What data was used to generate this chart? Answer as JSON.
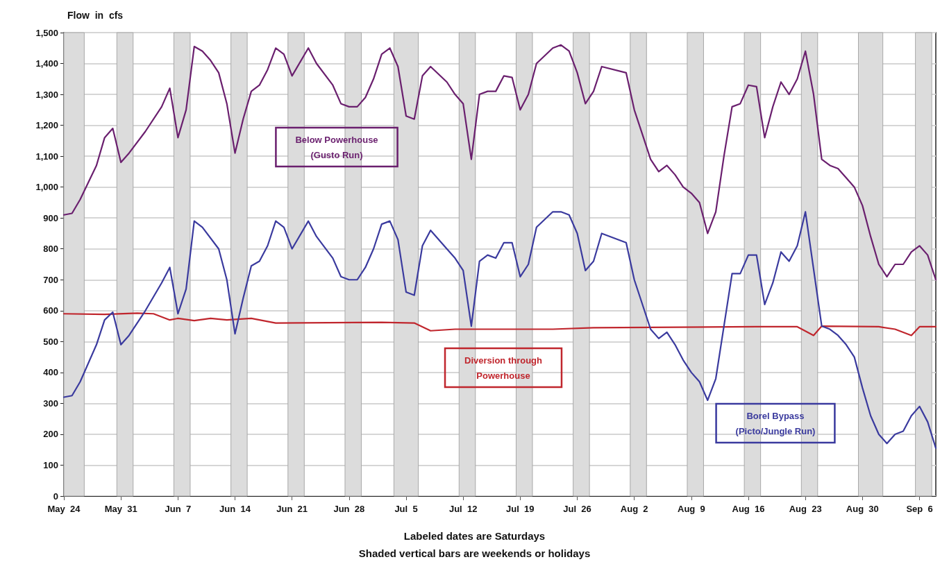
{
  "chart_data": {
    "type": "line",
    "ylabel": "Flow  in  cfs",
    "xlabel": "Labeled dates are Saturdays",
    "xlim": [
      "--05-24",
      "--09-08"
    ],
    "xticks": [
      {
        "value": "--05-24",
        "label": "May  24"
      },
      {
        "value": "--05-31",
        "label": "May  31"
      },
      {
        "value": "--06-07",
        "label": "Jun  7"
      },
      {
        "value": "--06-14",
        "label": "Jun  14"
      },
      {
        "value": "--06-21",
        "label": "Jun  21"
      },
      {
        "value": "--06-28",
        "label": "Jun  28"
      },
      {
        "value": "--07-05",
        "label": "Jul  5"
      },
      {
        "value": "--07-12",
        "label": "Jul  12"
      },
      {
        "value": "--07-19",
        "label": "Jul  19"
      },
      {
        "value": "--07-26",
        "label": "Jul  26"
      },
      {
        "value": "--08-02",
        "label": "Aug  2"
      },
      {
        "value": "--08-09",
        "label": "Aug  9"
      },
      {
        "value": "--08-16",
        "label": "Aug  16"
      },
      {
        "value": "--08-23",
        "label": "Aug  23"
      },
      {
        "value": "--08-30",
        "label": "Aug  30"
      },
      {
        "value": "--09-06",
        "label": "Sep  6"
      }
    ],
    "ylim": [
      0,
      1500
    ],
    "yticks": [
      0,
      100,
      200,
      300,
      400,
      500,
      600,
      700,
      800,
      900,
      {
        "value": 1000,
        "label": "1,000"
      },
      {
        "value": 1100,
        "label": "1,100"
      },
      {
        "value": 1200,
        "label": "1,200"
      },
      {
        "value": 1300,
        "label": "1,300"
      },
      {
        "value": 1400,
        "label": "1,400"
      },
      {
        "value": 1500,
        "label": "1,500"
      }
    ],
    "grid": "y",
    "legend": false,
    "marker": "none",
    "line_style": "solid",
    "series": [
      {
        "name": "Below Powerhouse\n(Gusto Run)",
        "color": "#6a1f6e",
        "x": [
          "--05-24",
          "--05-25",
          "--05-26",
          "--05-28",
          "--05-29",
          "--05-30",
          "--05-31",
          "--06-01",
          "--06-03",
          "--06-05",
          "--06-06",
          "--06-07",
          "--06-08",
          "--06-09",
          "--06-10",
          "--06-11",
          "--06-12",
          "--06-13",
          "--06-14",
          "--06-15",
          "--06-16",
          "--06-17",
          "--06-18",
          "--06-19",
          "--06-20",
          "--06-21",
          "--06-23",
          "--06-24",
          "--06-26",
          "--06-27",
          "--06-28",
          "--06-29",
          "--06-30",
          "--07-01",
          "--07-02",
          "--07-03",
          "--07-04",
          "--07-05",
          "--07-06",
          "--07-07",
          "--07-08",
          "--07-10",
          "--07-11",
          "--07-12",
          "--07-13",
          "--07-14",
          "--07-15",
          "--07-16",
          "--07-17",
          "--07-18",
          "--07-19",
          "--07-20",
          "--07-21",
          "--07-23",
          "--07-24",
          "--07-25",
          "--07-26",
          "--07-27",
          "--07-28",
          "--07-29",
          "--08-01",
          "--08-02",
          "--08-03",
          "--08-04",
          "--08-05",
          "--08-06",
          "--08-07",
          "--08-08",
          "--08-09",
          "--08-10",
          "--08-11",
          "--08-12",
          "--08-13",
          "--08-14",
          "--08-15",
          "--08-16",
          "--08-17",
          "--08-18",
          "--08-19",
          "--08-20",
          "--08-21",
          "--08-22",
          "--08-23",
          "--08-24",
          "--08-25",
          "--08-26",
          "--08-27",
          "--08-28",
          "--08-29",
          "--08-30",
          "--08-31",
          "--09-01",
          "--09-02",
          "--09-03",
          "--09-04",
          "--09-05",
          "--09-06",
          "--09-07",
          "--09-08"
        ],
        "values": [
          910,
          915,
          960,
          1070,
          1160,
          1190,
          1080,
          1110,
          1180,
          1260,
          1320,
          1160,
          1250,
          1455,
          1440,
          1410,
          1370,
          1270,
          1110,
          1220,
          1310,
          1330,
          1380,
          1450,
          1430,
          1360,
          1450,
          1400,
          1330,
          1270,
          1260,
          1260,
          1290,
          1350,
          1430,
          1450,
          1390,
          1230,
          1220,
          1360,
          1390,
          1340,
          1300,
          1270,
          1090,
          1300,
          1310,
          1310,
          1360,
          1355,
          1250,
          1300,
          1400,
          1450,
          1460,
          1440,
          1370,
          1270,
          1310,
          1390,
          1370,
          1250,
          1170,
          1090,
          1050,
          1070,
          1040,
          1000,
          980,
          950,
          850,
          920,
          1100,
          1260,
          1270,
          1330,
          1325,
          1160,
          1260,
          1340,
          1300,
          1350,
          1440,
          1300,
          1090,
          1070,
          1060,
          1030,
          1000,
          940,
          840,
          750,
          710,
          750,
          750,
          790,
          810,
          780,
          700
        ]
      },
      {
        "name": "Diversion through\nPowerhouse",
        "color": "#c0262d",
        "x": [
          "--05-24",
          "--05-29",
          "--06-02",
          "--06-04",
          "--06-06",
          "--06-07",
          "--06-09",
          "--06-11",
          "--06-13",
          "--06-16",
          "--06-19",
          "--07-02",
          "--07-06",
          "--07-08",
          "--07-11",
          "--07-23",
          "--07-28",
          "--08-17",
          "--08-22",
          "--08-24",
          "--08-25",
          "--09-01",
          "--09-03",
          "--09-05",
          "--09-06",
          "--09-08"
        ],
        "values": [
          590,
          588,
          592,
          590,
          570,
          575,
          568,
          575,
          570,
          575,
          560,
          562,
          560,
          535,
          540,
          540,
          545,
          548,
          548,
          520,
          550,
          548,
          540,
          520,
          548,
          548
        ]
      },
      {
        "name": "Borel Bypass\n(Picto/Jungle Run)",
        "color": "#3a3a9e",
        "x": [
          "--05-24",
          "--05-25",
          "--05-26",
          "--05-28",
          "--05-29",
          "--05-30",
          "--05-31",
          "--06-01",
          "--06-03",
          "--06-05",
          "--06-06",
          "--06-07",
          "--06-08",
          "--06-09",
          "--06-10",
          "--06-12",
          "--06-13",
          "--06-14",
          "--06-15",
          "--06-16",
          "--06-17",
          "--06-18",
          "--06-19",
          "--06-20",
          "--06-21",
          "--06-23",
          "--06-24",
          "--06-26",
          "--06-27",
          "--06-28",
          "--06-29",
          "--06-30",
          "--07-01",
          "--07-02",
          "--07-03",
          "--07-04",
          "--07-05",
          "--07-06",
          "--07-07",
          "--07-08",
          "--07-10",
          "--07-11",
          "--07-12",
          "--07-13",
          "--07-14",
          "--07-15",
          "--07-16",
          "--07-17",
          "--07-18",
          "--07-19",
          "--07-20",
          "--07-21",
          "--07-23",
          "--07-24",
          "--07-25",
          "--07-26",
          "--07-27",
          "--07-28",
          "--07-29",
          "--08-01",
          "--08-02",
          "--08-04",
          "--08-05",
          "--08-06",
          "--08-07",
          "--08-08",
          "--08-09",
          "--08-10",
          "--08-11",
          "--08-12",
          "--08-13",
          "--08-14",
          "--08-15",
          "--08-16",
          "--08-17",
          "--08-18",
          "--08-19",
          "--08-20",
          "--08-21",
          "--08-22",
          "--08-23",
          "--08-25",
          "--08-26",
          "--08-27",
          "--08-28",
          "--08-29",
          "--08-30",
          "--08-31",
          "--09-01",
          "--09-02",
          "--09-03",
          "--09-04",
          "--09-05",
          "--09-06",
          "--09-07",
          "--09-08"
        ],
        "values": [
          320,
          325,
          370,
          490,
          570,
          595,
          490,
          520,
          600,
          690,
          740,
          590,
          670,
          890,
          870,
          800,
          700,
          525,
          640,
          745,
          760,
          810,
          890,
          870,
          800,
          890,
          840,
          770,
          710,
          700,
          700,
          740,
          800,
          880,
          890,
          830,
          660,
          650,
          810,
          860,
          800,
          770,
          730,
          550,
          760,
          780,
          770,
          820,
          820,
          710,
          750,
          870,
          920,
          920,
          910,
          850,
          730,
          760,
          850,
          820,
          700,
          540,
          510,
          530,
          490,
          440,
          400,
          370,
          310,
          380,
          550,
          720,
          720,
          780,
          780,
          620,
          690,
          790,
          760,
          810,
          920,
          550,
          540,
          520,
          490,
          450,
          350,
          260,
          200,
          170,
          200,
          210,
          260,
          290,
          240,
          155
        ]
      }
    ],
    "bands": [
      {
        "axis": "x",
        "from": "--05-24",
        "to": "--05-26T12:00",
        "color": "#dcdcdc"
      },
      {
        "axis": "x",
        "from": "--05-30T12:00",
        "to": "--06-01T12:00",
        "color": "#dcdcdc"
      },
      {
        "axis": "x",
        "from": "--06-06T12:00",
        "to": "--06-08T12:00",
        "color": "#dcdcdc"
      },
      {
        "axis": "x",
        "from": "--06-13T12:00",
        "to": "--06-15T12:00",
        "color": "#dcdcdc"
      },
      {
        "axis": "x",
        "from": "--06-20T12:00",
        "to": "--06-22T12:00",
        "color": "#dcdcdc"
      },
      {
        "axis": "x",
        "from": "--06-27T12:00",
        "to": "--06-29T12:00",
        "color": "#dcdcdc"
      },
      {
        "axis": "x",
        "from": "--07-03T12:00",
        "to": "--07-06T12:00",
        "color": "#dcdcdc"
      },
      {
        "axis": "x",
        "from": "--07-11T12:00",
        "to": "--07-13T12:00",
        "color": "#dcdcdc"
      },
      {
        "axis": "x",
        "from": "--07-18T12:00",
        "to": "--07-20T12:00",
        "color": "#dcdcdc"
      },
      {
        "axis": "x",
        "from": "--07-25T12:00",
        "to": "--07-27T12:00",
        "color": "#dcdcdc"
      },
      {
        "axis": "x",
        "from": "--08-01T12:00",
        "to": "--08-03T12:00",
        "color": "#dcdcdc"
      },
      {
        "axis": "x",
        "from": "--08-08T12:00",
        "to": "--08-10T12:00",
        "color": "#dcdcdc"
      },
      {
        "axis": "x",
        "from": "--08-15T12:00",
        "to": "--08-17T12:00",
        "color": "#dcdcdc"
      },
      {
        "axis": "x",
        "from": "--08-22T12:00",
        "to": "--08-24T12:00",
        "color": "#dcdcdc"
      },
      {
        "axis": "x",
        "from": "--08-29T12:00",
        "to": "--09-01T12:00",
        "color": "#dcdcdc"
      },
      {
        "axis": "x",
        "from": "--09-05T12:00",
        "to": "--09-07T12:00",
        "color": "#dcdcdc"
      }
    ],
    "annotations": [
      "Shaded vertical bars are weekends or holidays"
    ]
  }
}
